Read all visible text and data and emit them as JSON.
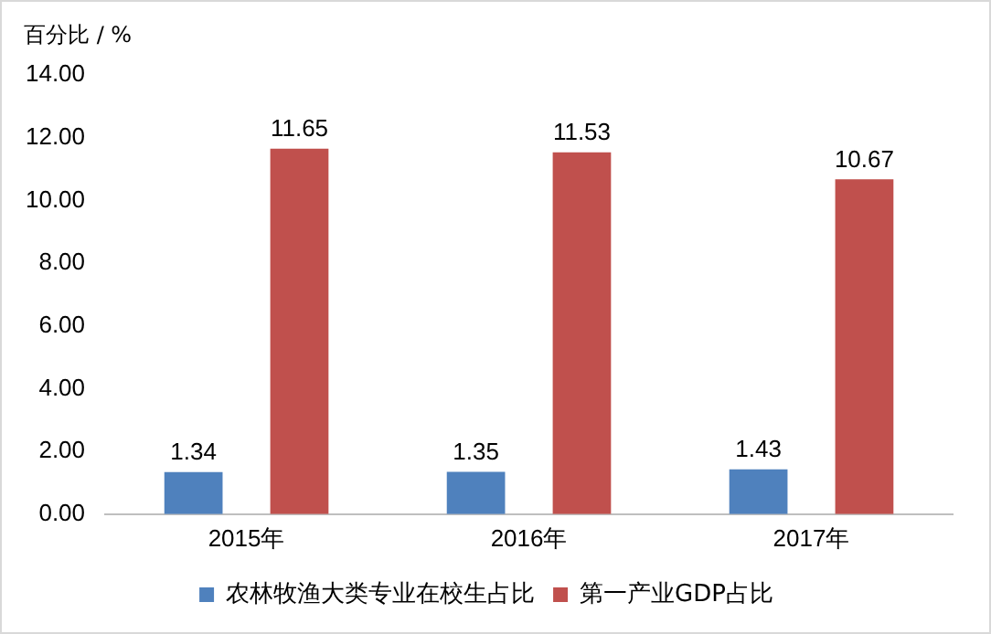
{
  "chart_data": {
    "type": "bar",
    "ylabel": "百分比 / %",
    "categories": [
      "2015年",
      "2016年",
      "2017年"
    ],
    "series": [
      {
        "name": "农林牧渔大类专业在校生占比",
        "color": "#4f81bd",
        "values": [
          1.34,
          1.35,
          1.43
        ]
      },
      {
        "name": "第一产业GDP占比",
        "color": "#c0504d",
        "values": [
          11.65,
          11.53,
          10.67
        ]
      }
    ],
    "ylim": [
      0,
      14
    ],
    "yticks": [
      {
        "value": 0,
        "label": "0.00"
      },
      {
        "value": 2,
        "label": "2.00"
      },
      {
        "value": 4,
        "label": "4.00"
      },
      {
        "value": 6,
        "label": "6.00"
      },
      {
        "value": 8,
        "label": "8.00"
      },
      {
        "value": 10,
        "label": "10.00"
      },
      {
        "value": 12,
        "label": "12.00"
      },
      {
        "value": 14,
        "label": "14.00"
      }
    ],
    "grid": false,
    "legend": "bottom",
    "data_labels": true
  }
}
